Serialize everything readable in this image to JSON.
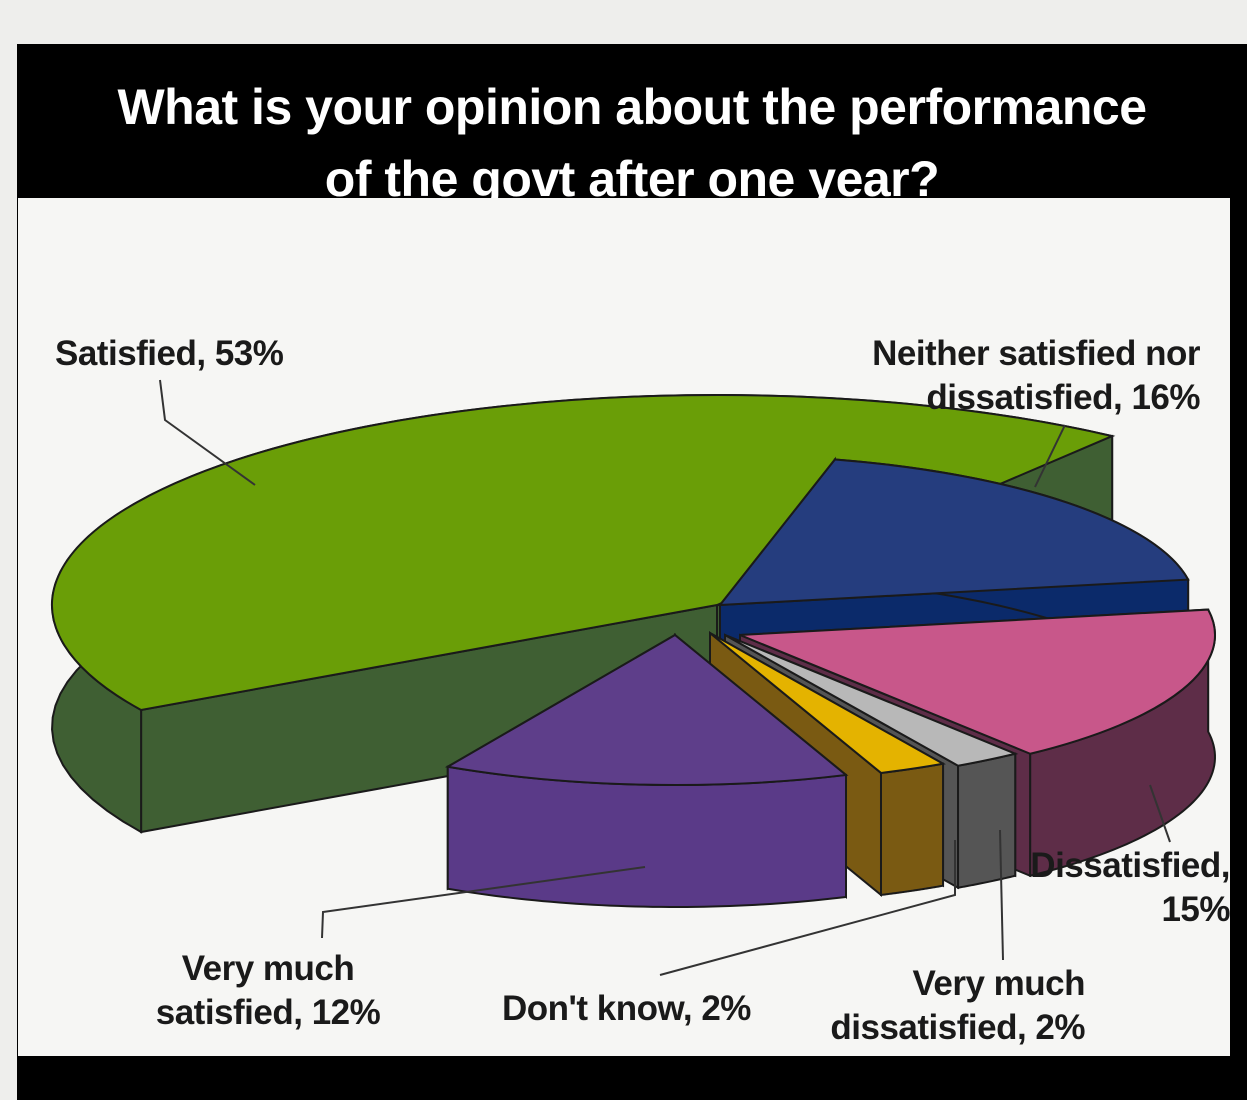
{
  "title_lines": [
    "What is your opinion about the performance",
    "of the govt after one year?"
  ],
  "chart_data": {
    "type": "pie",
    "title": "What is your opinion about the performance of the govt after one year?",
    "style": "3d-exploded",
    "legend": "none",
    "slices": [
      {
        "category": "Satisfied",
        "value": 53,
        "color": "#6a9e07",
        "side_color": "#3f5f33",
        "label_lines": [
          "Satisfied, 53%"
        ]
      },
      {
        "category": "Neither satisfied nor dissatisfied",
        "value": 16,
        "color": "#253d7e",
        "side_color": "#0b2a6a",
        "label_lines": [
          "Neither satisfied nor",
          "dissatisfied, 16%"
        ]
      },
      {
        "category": "Dissatisfied",
        "value": 15,
        "color": "#c8578a",
        "side_color": "#5e2d48",
        "label_lines": [
          "Dissatisfied,",
          "15%"
        ]
      },
      {
        "category": "Very much dissatisfied",
        "value": 2,
        "color": "#b8b8b8",
        "side_color": "#555555",
        "label_lines": [
          "Very much",
          "dissatisfied, 2%"
        ]
      },
      {
        "category": "Don't know",
        "value": 2,
        "color": "#e4b300",
        "side_color": "#7a5a12",
        "label_lines": [
          "Don't know, 2%"
        ]
      },
      {
        "category": "Very much satisfied",
        "value": 12,
        "color": "#5e3e8a",
        "side_color": "#5a3a88",
        "label_lines": [
          "Very much",
          "satisfied, 12%"
        ]
      }
    ]
  }
}
